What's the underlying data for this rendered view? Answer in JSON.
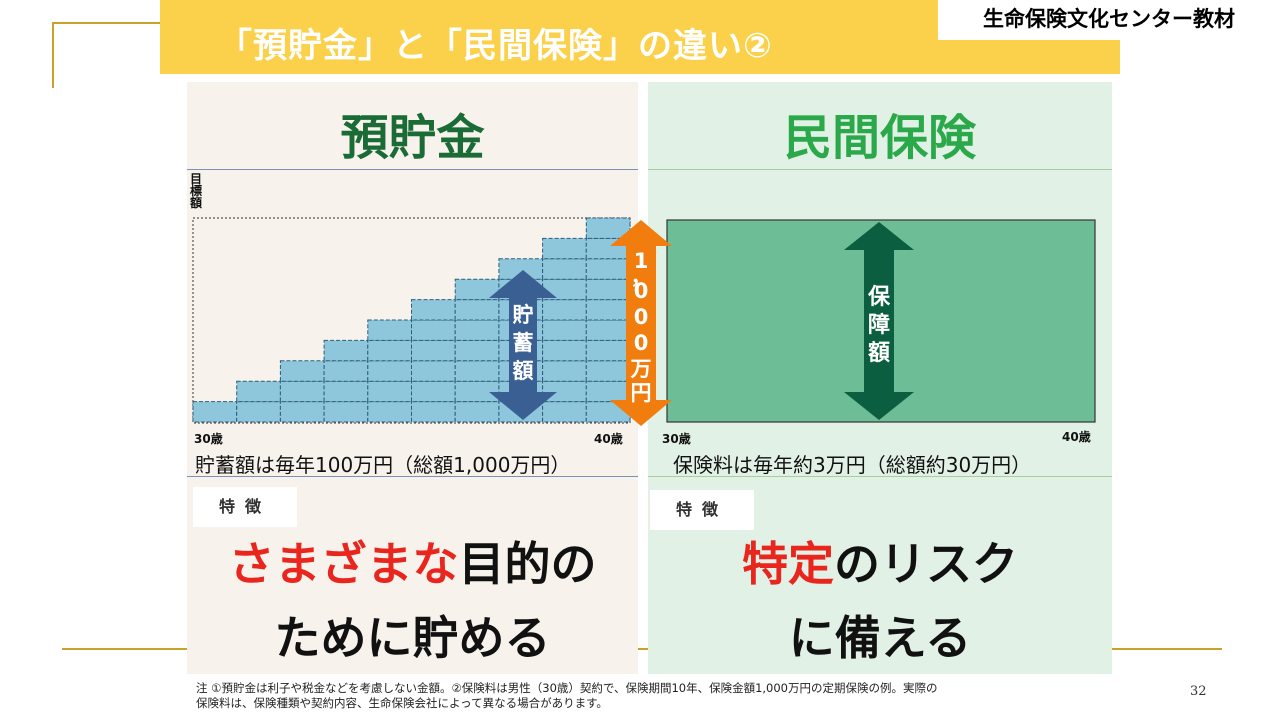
{
  "slide": {
    "title": "「預貯金」と「民間保険」の違い②",
    "brand": "生命保険文化センター教材",
    "page_number": "32",
    "footnote_line1": "注 ①預貯金は利子や税金などを考慮しない金額。②保険料は男性（30歳）契約で、保険期間10年、保険金額1,000万円の定期保険の例。実際の",
    "footnote_line2": "保険料は、保険種類や契約内容、生命保険会社によって異なる場合があります。"
  },
  "left": {
    "heading": "預貯金",
    "y_axis_label": [
      "目",
      "標",
      "額"
    ],
    "start_age": "30歳",
    "end_age": "40歳",
    "arrow_label": [
      "貯",
      "蓄",
      "額"
    ],
    "steps": [
      1,
      2,
      3,
      4,
      5,
      6,
      7,
      8,
      9,
      10
    ],
    "description": "貯蓄額は毎年100万円（総額1,000万円）",
    "feature_tag": "特徴",
    "feature_red": "さまざまな",
    "feature_rest1": "目的の",
    "feature_line2": "ために貯める"
  },
  "middle": {
    "target_label": [
      "1",
      "，",
      "0",
      "0",
      "0",
      "万",
      "円"
    ]
  },
  "right": {
    "heading": "民間保険",
    "start_age": "30歳",
    "end_age": "40歳",
    "arrow_label": [
      "保",
      "障",
      "額"
    ],
    "description": "保険料は毎年約3万円（総額約30万円）",
    "feature_tag": "特徴",
    "feature_red": "特定",
    "feature_rest1": "のリスク",
    "feature_line2": "に備える"
  },
  "colors": {
    "banner": "#fbd14b",
    "left_heading": "#1a6b35",
    "right_heading": "#2aa84a",
    "steps_fill": "#8ec6dc",
    "savings_arrow": "#3a5f93",
    "target_arrow": "#f07d0e",
    "insurance_fill": "#6dbd96",
    "insurance_arrow": "#0b5e3f",
    "highlight": "#e8261d"
  }
}
